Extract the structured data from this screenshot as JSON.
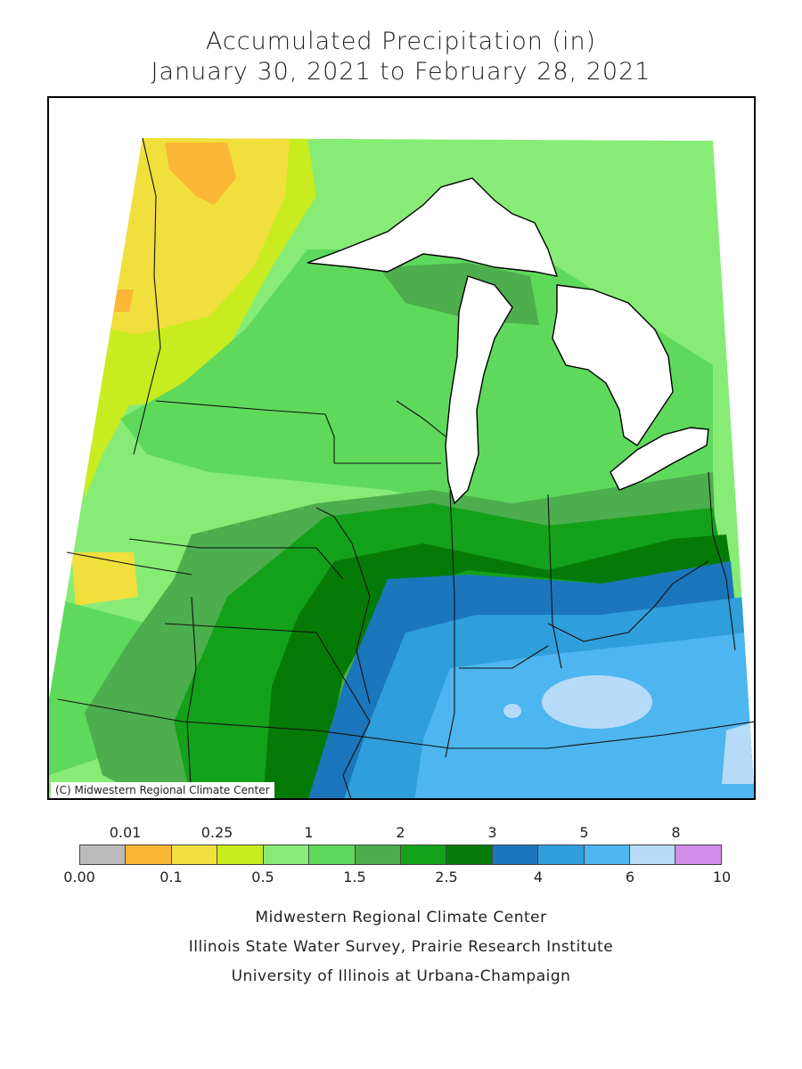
{
  "title": {
    "line1": "Accumulated Precipitation (in)",
    "line2": "January 30, 2021 to February 28, 2021"
  },
  "map": {
    "copyright": "(C) Midwestern Regional Climate Center",
    "colors": {
      "water": "#ffffff",
      "c0_01": "#fbb635",
      "c0_1": "#f1df3d",
      "c0_25": "#c8ec1f",
      "c0_5": "#86ec76",
      "c1": "#5ed95c",
      "c1_5": "#4cae4c",
      "c2": "#13a11a",
      "c2_5": "#067a06",
      "c3": "#1b76bb",
      "c4": "#2f9edb",
      "c5": "#4db5ef",
      "c6": "#b6dbf8"
    }
  },
  "legend": {
    "top_labels": [
      "0.01",
      "0.25",
      "1",
      "2",
      "3",
      "5",
      "8"
    ],
    "bottom_labels": [
      "0.00",
      "0.1",
      "0.5",
      "1.5",
      "2.5",
      "4",
      "6",
      "10"
    ],
    "colors": [
      "#bbbbbb",
      "#fbb635",
      "#f1df3d",
      "#c8ec1f",
      "#86ec76",
      "#5ed95c",
      "#4cae4c",
      "#13a11a",
      "#067a06",
      "#1b76bb",
      "#2f9edb",
      "#4db5ef",
      "#b6dbf8",
      "#d08ce8"
    ]
  },
  "credits": {
    "line1": "Midwestern Regional Climate Center",
    "line2": "Illinois State Water Survey, Prairie Research Institute",
    "line3": "University of Illinois at Urbana-Champaign"
  }
}
